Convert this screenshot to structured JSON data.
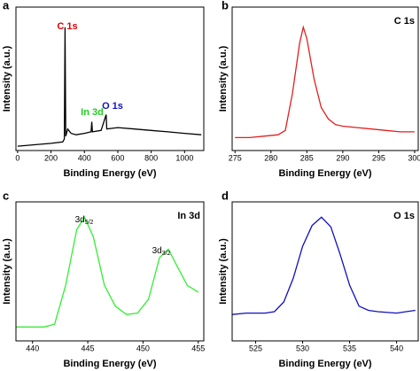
{
  "chart_data": [
    {
      "type": "line",
      "panel_label": "a",
      "x_label": "Binding Energy (eV)",
      "y_label": "Intensity (a.u.)",
      "xlim": [
        -10,
        1115
      ],
      "ylim": [
        0,
        100
      ],
      "xticks": [
        0,
        200,
        400,
        600,
        800,
        1000
      ],
      "x": [
        0,
        100,
        200,
        270,
        280,
        284,
        288,
        300,
        320,
        350,
        400,
        440,
        444,
        448,
        500,
        530,
        534,
        600,
        700,
        800,
        900,
        1000,
        1100
      ],
      "series": [
        {
          "color": "#000000",
          "values": [
            3,
            4,
            5,
            6,
            8,
            86,
            10,
            15,
            12,
            11,
            12,
            13,
            20,
            13,
            14,
            25,
            15,
            16,
            15,
            14,
            13,
            12,
            11
          ]
        }
      ],
      "annotations": [
        {
          "text": "C 1s",
          "color": "#e00000"
        },
        {
          "text": "In 3d",
          "color": "#22cc22"
        },
        {
          "text": "O 1s",
          "color": "#1010c0"
        }
      ]
    },
    {
      "type": "line",
      "panel_label": "b",
      "label": "C 1s",
      "x_label": "Binding Energy (eV)",
      "y_label": "Intensity (a.u.)",
      "xlim": [
        274.6,
        300.5
      ],
      "ylim": [
        0,
        100
      ],
      "xticks": [
        275,
        280,
        285,
        290,
        295,
        300
      ],
      "x": [
        275,
        277,
        279,
        281,
        282,
        283,
        284,
        284.5,
        285,
        286,
        287,
        288,
        289,
        290,
        292,
        294,
        296,
        298,
        300
      ],
      "series": [
        {
          "color": "#e02020",
          "values": [
            9,
            9,
            10,
            11,
            14,
            40,
            75,
            86,
            78,
            50,
            30,
            22,
            18,
            17,
            16,
            15,
            14,
            13,
            13
          ]
        }
      ]
    },
    {
      "type": "line",
      "panel_label": "c",
      "label": "In 3d",
      "x_label": "Binding Energy (eV)",
      "y_label": "Intensity (a.u.)",
      "xlim": [
        438.5,
        455.5
      ],
      "ylim": [
        0,
        100
      ],
      "xticks": [
        440,
        445,
        450,
        455
      ],
      "x": [
        438.5,
        440,
        441,
        442,
        443,
        444,
        444.7,
        445.5,
        446.5,
        447.5,
        448.5,
        449.5,
        450.5,
        451.5,
        452.3,
        453,
        454,
        455
      ],
      "series": [
        {
          "color": "#33ee33",
          "values": [
            10,
            10,
            10,
            12,
            40,
            80,
            89,
            75,
            40,
            25,
            19,
            20,
            30,
            60,
            66,
            55,
            40,
            35
          ]
        }
      ],
      "annotations": [
        {
          "text": "3d",
          "sub": "5/2"
        },
        {
          "text": "3d",
          "sub": "3/2"
        }
      ]
    },
    {
      "type": "line",
      "panel_label": "d",
      "label": "O 1s",
      "x_label": "Binding Energy (eV)",
      "y_label": "Intensity (a.u.)",
      "xlim": [
        522.5,
        542.3
      ],
      "ylim": [
        0,
        100
      ],
      "xticks": [
        525,
        530,
        535,
        540
      ],
      "x": [
        522.5,
        524,
        526,
        527,
        528,
        529,
        530,
        531,
        532,
        533,
        534,
        535,
        536,
        537,
        538,
        540,
        541,
        542
      ],
      "series": [
        {
          "color": "#1010c0",
          "values": [
            19,
            20,
            20,
            21,
            28,
            45,
            68,
            83,
            89,
            82,
            62,
            40,
            25,
            22,
            21,
            20,
            21,
            22
          ]
        }
      ]
    }
  ]
}
